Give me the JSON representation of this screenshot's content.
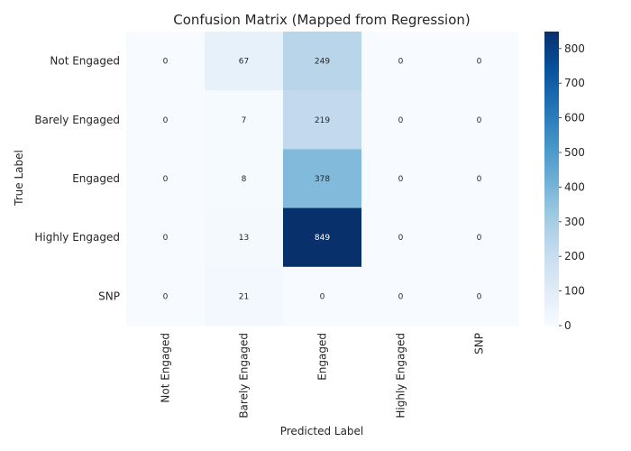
{
  "chart_data": {
    "type": "heatmap",
    "title": "Confusion Matrix (Mapped from Regression)",
    "xlabel": "Predicted Label",
    "ylabel": "True Label",
    "x_categories": [
      "Not Engaged",
      "Barely Engaged",
      "Engaged",
      "Highly Engaged",
      "SNP"
    ],
    "y_categories": [
      "Not Engaged",
      "Barely Engaged",
      "Engaged",
      "Highly Engaged",
      "SNP"
    ],
    "values": [
      [
        0,
        67,
        249,
        0,
        0
      ],
      [
        0,
        7,
        219,
        0,
        0
      ],
      [
        0,
        8,
        378,
        0,
        0
      ],
      [
        0,
        13,
        849,
        0,
        0
      ],
      [
        0,
        21,
        0,
        0,
        0
      ]
    ],
    "colorbar": {
      "colormap": "Blues",
      "vmin": 0,
      "vmax": 849,
      "ticks": [
        0,
        100,
        200,
        300,
        400,
        500,
        600,
        700,
        800
      ]
    },
    "grid": false
  }
}
